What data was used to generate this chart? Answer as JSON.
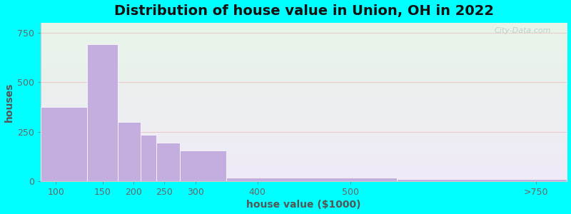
{
  "title": "Distribution of house value in Union, OH in 2022",
  "xlabel": "house value ($1000)",
  "ylabel": "houses",
  "tick_positions": [
    75,
    150,
    200,
    250,
    300,
    400,
    550,
    850
  ],
  "tick_labels": [
    "100",
    "150",
    "200",
    "250",
    "300",
    "400",
    "500",
    ">750"
  ],
  "bar_lefts": [
    50,
    125,
    175,
    212,
    237,
    275,
    350,
    625
  ],
  "bar_widths": [
    75,
    50,
    37,
    25,
    38,
    75,
    275,
    275
  ],
  "bar_values": [
    375,
    690,
    300,
    235,
    195,
    155,
    18,
    12
  ],
  "bar_color": "#c4aee0",
  "yticks": [
    0,
    250,
    500,
    750
  ],
  "ylim": [
    0,
    800
  ],
  "xlim": [
    50,
    900
  ],
  "bg_outer": "#00ffff",
  "grid_color": "#f0a0a0",
  "title_fontsize": 14,
  "axis_label_fontsize": 10,
  "tick_fontsize": 9,
  "watermark": "City-Data.com"
}
